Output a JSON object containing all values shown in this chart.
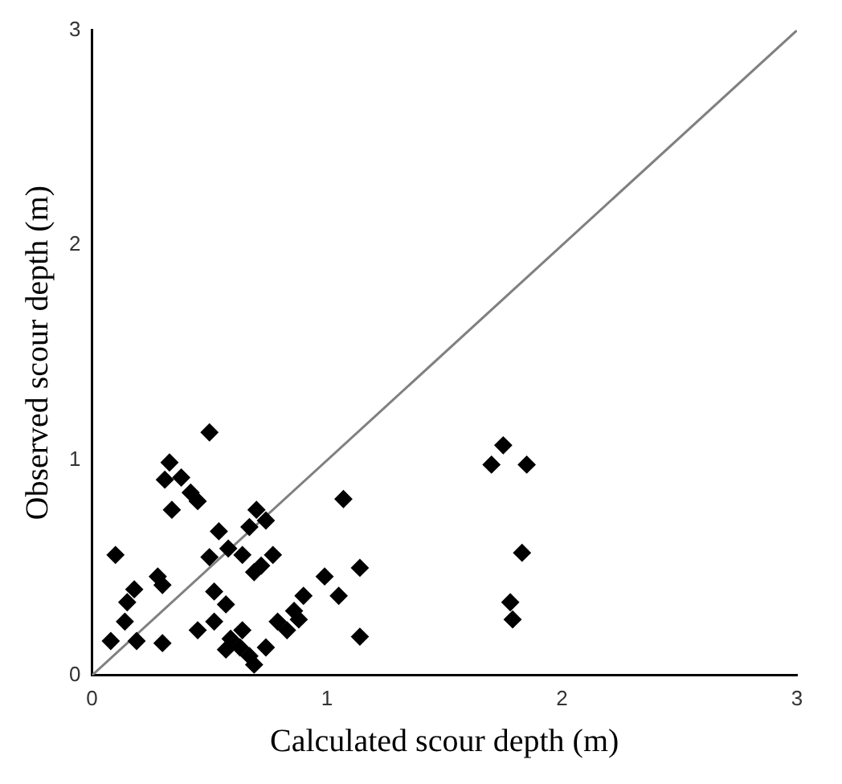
{
  "chart_data": {
    "type": "scatter",
    "xlabel": "Calculated scour depth (m)",
    "ylabel": "Observed scour depth (m)",
    "xlim": [
      0,
      3
    ],
    "ylim": [
      0,
      3
    ],
    "xticks": [
      0,
      1,
      2,
      3
    ],
    "yticks": [
      0,
      1,
      2,
      3
    ],
    "grid": false,
    "legend": false,
    "marker": "diamond",
    "series": [
      {
        "type": "scatter",
        "color": "#000000",
        "x": [
          0.5,
          0.33,
          0.31,
          0.38,
          0.42,
          0.45,
          0.34,
          1.07,
          0.7,
          0.67,
          0.74,
          0.54,
          0.1,
          0.5,
          0.58,
          0.64,
          0.77,
          0.69,
          0.72,
          1.14,
          0.28,
          0.3,
          0.18,
          0.15,
          0.52,
          0.57,
          0.99,
          0.9,
          1.05,
          0.86,
          0.14,
          0.08,
          0.19,
          0.3,
          0.45,
          0.52,
          0.64,
          0.59,
          0.57,
          0.63,
          0.67,
          0.69,
          0.74,
          0.79,
          0.83,
          0.88,
          1.14,
          1.75,
          1.7,
          1.85,
          1.83,
          1.78,
          1.79
        ],
        "values": [
          1.13,
          0.99,
          0.91,
          0.92,
          0.85,
          0.81,
          0.77,
          0.82,
          0.77,
          0.69,
          0.72,
          0.67,
          0.56,
          0.55,
          0.59,
          0.56,
          0.56,
          0.48,
          0.51,
          0.5,
          0.46,
          0.42,
          0.4,
          0.34,
          0.39,
          0.33,
          0.46,
          0.37,
          0.37,
          0.3,
          0.25,
          0.16,
          0.16,
          0.15,
          0.21,
          0.25,
          0.21,
          0.17,
          0.12,
          0.13,
          0.09,
          0.05,
          0.13,
          0.25,
          0.21,
          0.26,
          0.18,
          1.07,
          0.98,
          0.98,
          0.57,
          0.34,
          0.26
        ]
      },
      {
        "type": "line",
        "color": "#808080",
        "marker": "none",
        "x": [
          0,
          3
        ],
        "values": [
          0,
          3
        ]
      }
    ]
  }
}
